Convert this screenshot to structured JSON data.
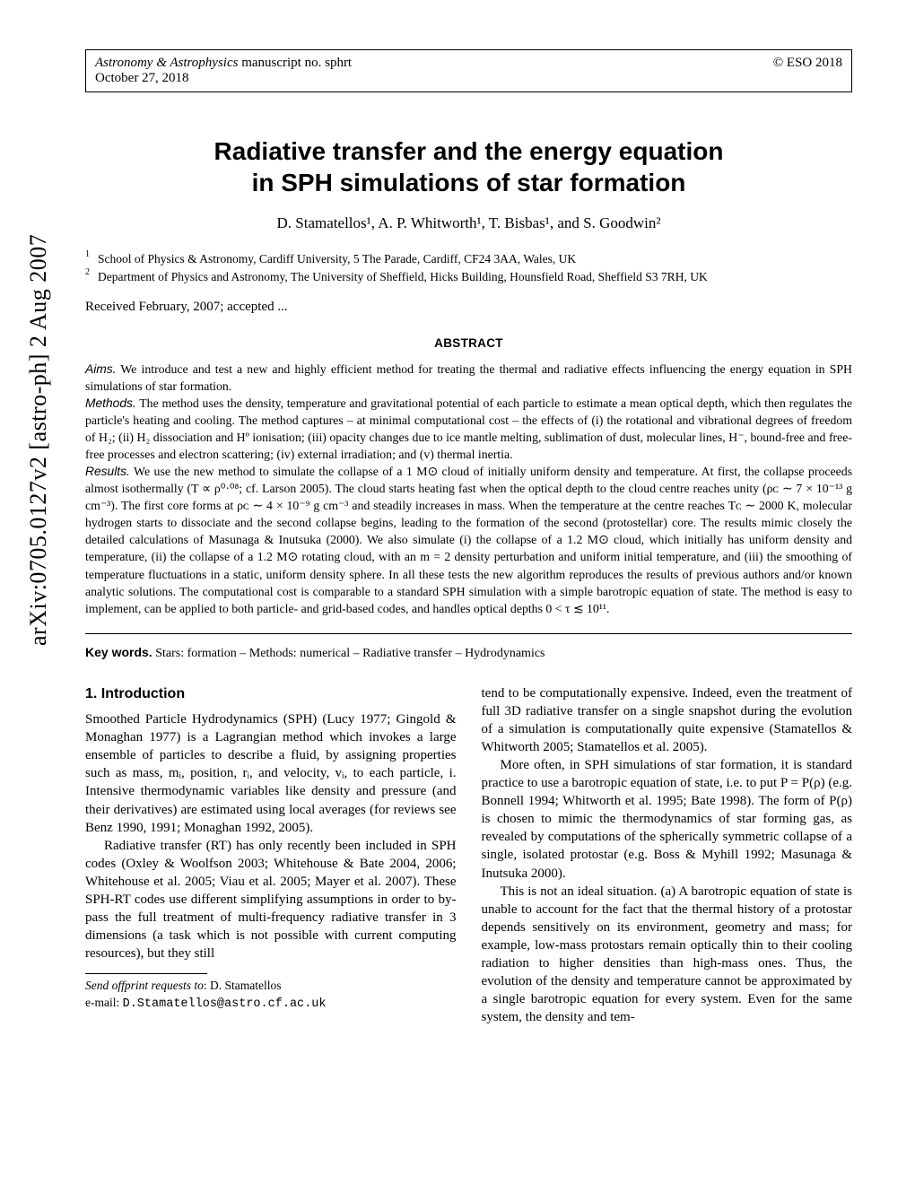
{
  "arxiv_label": "arXiv:0705.0127v2  [astro-ph]  2 Aug 2007",
  "header": {
    "journal": "Astronomy & Astrophysics",
    "manuscript": " manuscript no. sphrt",
    "date": "October 27, 2018",
    "copyright": "© ESO 2018"
  },
  "title_line1": "Radiative transfer and the energy equation",
  "title_line2": "in SPH simulations of star formation",
  "authors": "D. Stamatellos¹, A. P. Whitworth¹, T. Bisbas¹, and S. Goodwin²",
  "affiliations": [
    {
      "num": "1",
      "text": "School of Physics & Astronomy, Cardiff University, 5 The Parade, Cardiff, CF24 3AA, Wales, UK"
    },
    {
      "num": "2",
      "text": "Department of Physics and Astronomy, The University of Sheffield, Hicks Building, Hounsfield Road, Sheffield S3 7RH, UK"
    }
  ],
  "received": "Received February, 2007; accepted ...",
  "abstract_heading": "ABSTRACT",
  "abstract": {
    "aims_label": "Aims.",
    "aims": " We introduce and test a new and highly efficient method for treating the thermal and radiative effects influencing the energy equation in SPH simulations of star formation.",
    "methods_label": "Methods.",
    "methods": " The method uses the density, temperature and gravitational potential of each particle to estimate a mean optical depth, which then regulates the particle's heating and cooling. The method captures – at minimal computational cost – the effects of (i) the rotational and vibrational degrees of freedom of H₂; (ii) H₂ dissociation and Hº ionisation; (iii) opacity changes due to ice mantle melting, sublimation of dust, molecular lines, H⁻, bound-free and free-free processes and electron scattering; (iv) external irradiation; and (v) thermal inertia.",
    "results_label": "Results.",
    "results": " We use the new method to simulate the collapse of a 1 M⊙ cloud of initially uniform density and temperature. At first, the collapse proceeds almost isothermally (T ∝ ρ⁰·⁰⁸; cf. Larson 2005). The cloud starts heating fast when the optical depth to the cloud centre reaches unity (ρᴄ ∼ 7 × 10⁻¹³ g cm⁻³). The first core forms at ρᴄ ∼ 4 × 10⁻⁹ g cm⁻³ and steadily increases in mass. When the temperature at the centre reaches Tᴄ ∼ 2000 K, molecular hydrogen starts to dissociate and the second collapse begins, leading to the formation of the second (protostellar) core. The results mimic closely the detailed calculations of Masunaga & Inutsuka (2000). We also simulate (i) the collapse of a 1.2 M⊙ cloud, which initially has uniform density and temperature, (ii) the collapse of a 1.2 M⊙ rotating cloud, with an m = 2 density perturbation and uniform initial temperature, and (iii) the smoothing of temperature fluctuations in a static, uniform density sphere. In all these tests the new algorithm reproduces the results of previous authors and/or known analytic solutions. The computational cost is comparable to a standard SPH simulation with a simple barotropic equation of state. The method is easy to implement, can be applied to both particle- and grid-based codes, and handles optical depths 0 < τ ≲ 10¹¹."
  },
  "keywords_label": "Key words.",
  "keywords": " Stars: formation – Methods: numerical – Radiative transfer – Hydrodynamics",
  "section1_heading": "1. Introduction",
  "body": {
    "left_p1": "Smoothed Particle Hydrodynamics (SPH) (Lucy 1977; Gingold & Monaghan 1977) is a Lagrangian method which invokes a large ensemble of particles to describe a fluid, by assigning properties such as mass, mᵢ, position, rᵢ, and velocity, vᵢ, to each particle, i. Intensive thermodynamic variables like density and pressure (and their derivatives) are estimated using local averages (for reviews see Benz 1990, 1991; Monaghan 1992, 2005).",
    "left_p2": "Radiative transfer (RT) has only recently been included in SPH codes (Oxley & Woolfson 2003; Whitehouse & Bate 2004, 2006; Whitehouse et al. 2005; Viau et al. 2005; Mayer et al. 2007). These SPH-RT codes use different simplifying assumptions in order to by-pass the full treatment of multi-frequency radiative transfer in 3 dimensions (a task which is not possible with current computing resources), but they still",
    "right_p1": "tend to be computationally expensive. Indeed, even the treatment of full 3D radiative transfer on a single snapshot during the evolution of a simulation is computationally quite expensive (Stamatellos & Whitworth 2005; Stamatellos et al. 2005).",
    "right_p2": "More often, in SPH simulations of star formation, it is standard practice to use a barotropic equation of state, i.e. to put P = P(ρ) (e.g. Bonnell 1994; Whitworth et al. 1995; Bate 1998). The form of P(ρ) is chosen to mimic the thermodynamics of star forming gas, as revealed by computations of the spherically symmetric collapse of a single, isolated protostar (e.g. Boss & Myhill 1992; Masunaga & Inutsuka 2000).",
    "right_p3": "This is not an ideal situation. (a) A barotropic equation of state is unable to account for the fact that the thermal history of a protostar depends sensitively on its environment, geometry and mass; for example, low-mass protostars remain optically thin to their cooling radiation to higher densities than high-mass ones. Thus, the evolution of the density and temperature cannot be approximated by a single barotropic equation for every system. Even for the same system, the density and tem-"
  },
  "footnote": {
    "line1_italic": "Send offprint requests to",
    "line1_rest": ": D. Stamatellos",
    "line2_prefix": "e-mail: ",
    "line2_mono": "D.Stamatellos@astro.cf.ac.uk"
  }
}
